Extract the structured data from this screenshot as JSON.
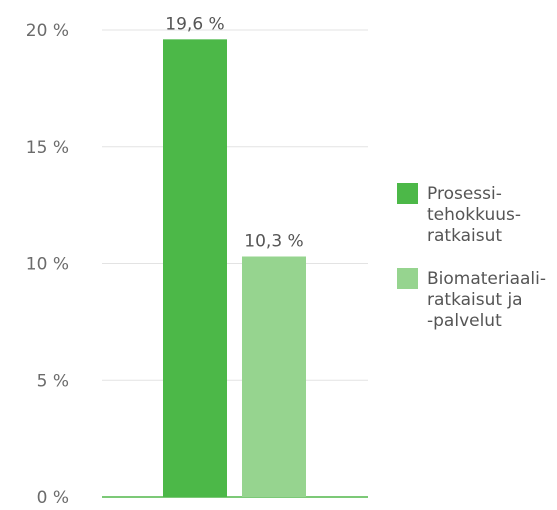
{
  "chart_data": {
    "type": "bar",
    "title": "",
    "xlabel": "",
    "ylabel": "",
    "ylim": [
      0,
      20
    ],
    "yticks": [
      0,
      5,
      10,
      15,
      20
    ],
    "ytick_labels": [
      "0 %",
      "5 %",
      "10 %",
      "15 %",
      "20 %"
    ],
    "grid": true,
    "legend_position": "right",
    "series": [
      {
        "name": "Prosessi-\ntehokkuus-\nratkaisut",
        "value": 19.6,
        "label": "19,6 %",
        "color": "#4cb848"
      },
      {
        "name": "Biomateriaali-\nratkaisut ja\n-palvelut",
        "value": 10.3,
        "label": "10,3 %",
        "color": "#96d48f"
      }
    ],
    "colors": {
      "gridline": "#e3e3e3",
      "baseline": "#7cc977",
      "tick_text": "#6b6b6b",
      "label_text": "#555555"
    }
  }
}
